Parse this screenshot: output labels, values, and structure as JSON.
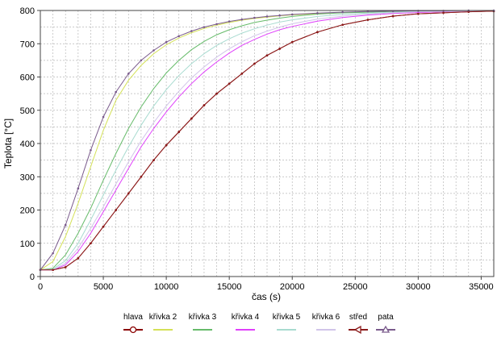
{
  "chart_data": {
    "type": "line",
    "title": "",
    "xlabel": "čas (s)",
    "ylabel": "Teplota [°C]",
    "xlim": [
      0,
      36000
    ],
    "ylim": [
      0,
      800
    ],
    "xticks": [
      0,
      5000,
      10000,
      15000,
      20000,
      25000,
      30000,
      35000
    ],
    "yticks": [
      0,
      100,
      200,
      300,
      400,
      500,
      600,
      700,
      800
    ],
    "x_minor_step": 1000,
    "y_minor_step": 50,
    "grid": true,
    "legend_position": "bottom",
    "x": [
      0,
      1000,
      2000,
      3000,
      4000,
      5000,
      6000,
      7000,
      8000,
      9000,
      10000,
      11000,
      12000,
      13000,
      14000,
      15000,
      16000,
      17000,
      18000,
      19000,
      20000,
      22000,
      24000,
      26000,
      28000,
      30000,
      32000,
      34000,
      36000
    ],
    "series": [
      {
        "name": "hlava",
        "color": "#8b0000",
        "marker": "circle",
        "values": [
          20,
          20,
          28,
          55,
          100,
          150,
          200,
          250,
          300,
          350,
          395,
          435,
          475,
          515,
          550,
          580,
          610,
          640,
          665,
          685,
          705,
          735,
          757,
          772,
          783,
          790,
          793,
          796,
          798
        ]
      },
      {
        "name": "křivka 2",
        "color": "#d4e157",
        "values": [
          20,
          45,
          120,
          220,
          330,
          440,
          530,
          590,
          635,
          670,
          697,
          717,
          733,
          746,
          756,
          764,
          771,
          776,
          780,
          784,
          787,
          791,
          794,
          796,
          797,
          798,
          799,
          799,
          800
        ]
      },
      {
        "name": "křivka 3",
        "color": "#66bb6a",
        "values": [
          20,
          25,
          65,
          130,
          205,
          290,
          370,
          445,
          510,
          565,
          612,
          650,
          682,
          707,
          727,
          742,
          754,
          764,
          771,
          777,
          782,
          789,
          793,
          795,
          797,
          798,
          799,
          799,
          800
        ]
      },
      {
        "name": "křivka 4",
        "color": "#e040fb",
        "values": [
          20,
          20,
          35,
          75,
          130,
          195,
          260,
          325,
          390,
          445,
          495,
          540,
          580,
          615,
          645,
          672,
          695,
          713,
          729,
          742,
          752,
          768,
          779,
          786,
          791,
          794,
          796,
          798,
          799
        ]
      },
      {
        "name": "křivka 5",
        "color": "#a8dbd0",
        "values": [
          20,
          22,
          48,
          100,
          170,
          245,
          320,
          390,
          455,
          513,
          562,
          604,
          640,
          670,
          695,
          715,
          732,
          745,
          756,
          765,
          772,
          782,
          788,
          792,
          795,
          797,
          798,
          799,
          800
        ]
      },
      {
        "name": "křivka 6",
        "color": "#d1c4e9",
        "values": [
          20,
          20,
          40,
          85,
          145,
          210,
          278,
          345,
          408,
          463,
          513,
          557,
          597,
          630,
          660,
          685,
          706,
          724,
          738,
          750,
          760,
          774,
          783,
          789,
          793,
          796,
          797,
          798,
          799
        ]
      },
      {
        "name": "střed",
        "color": "#8b1a1a",
        "marker": "triangle-left",
        "values": [
          20,
          20,
          28,
          55,
          100,
          150,
          200,
          250,
          300,
          350,
          395,
          435,
          475,
          515,
          550,
          580,
          610,
          640,
          665,
          685,
          705,
          735,
          757,
          772,
          783,
          790,
          793,
          796,
          798
        ]
      },
      {
        "name": "pata",
        "color": "#7a5a8c",
        "marker": "triangle-up",
        "values": [
          20,
          70,
          155,
          265,
          380,
          480,
          555,
          610,
          650,
          680,
          705,
          723,
          738,
          750,
          759,
          767,
          773,
          778,
          782,
          785,
          788,
          792,
          795,
          797,
          798,
          799,
          799,
          800,
          800
        ]
      }
    ]
  }
}
